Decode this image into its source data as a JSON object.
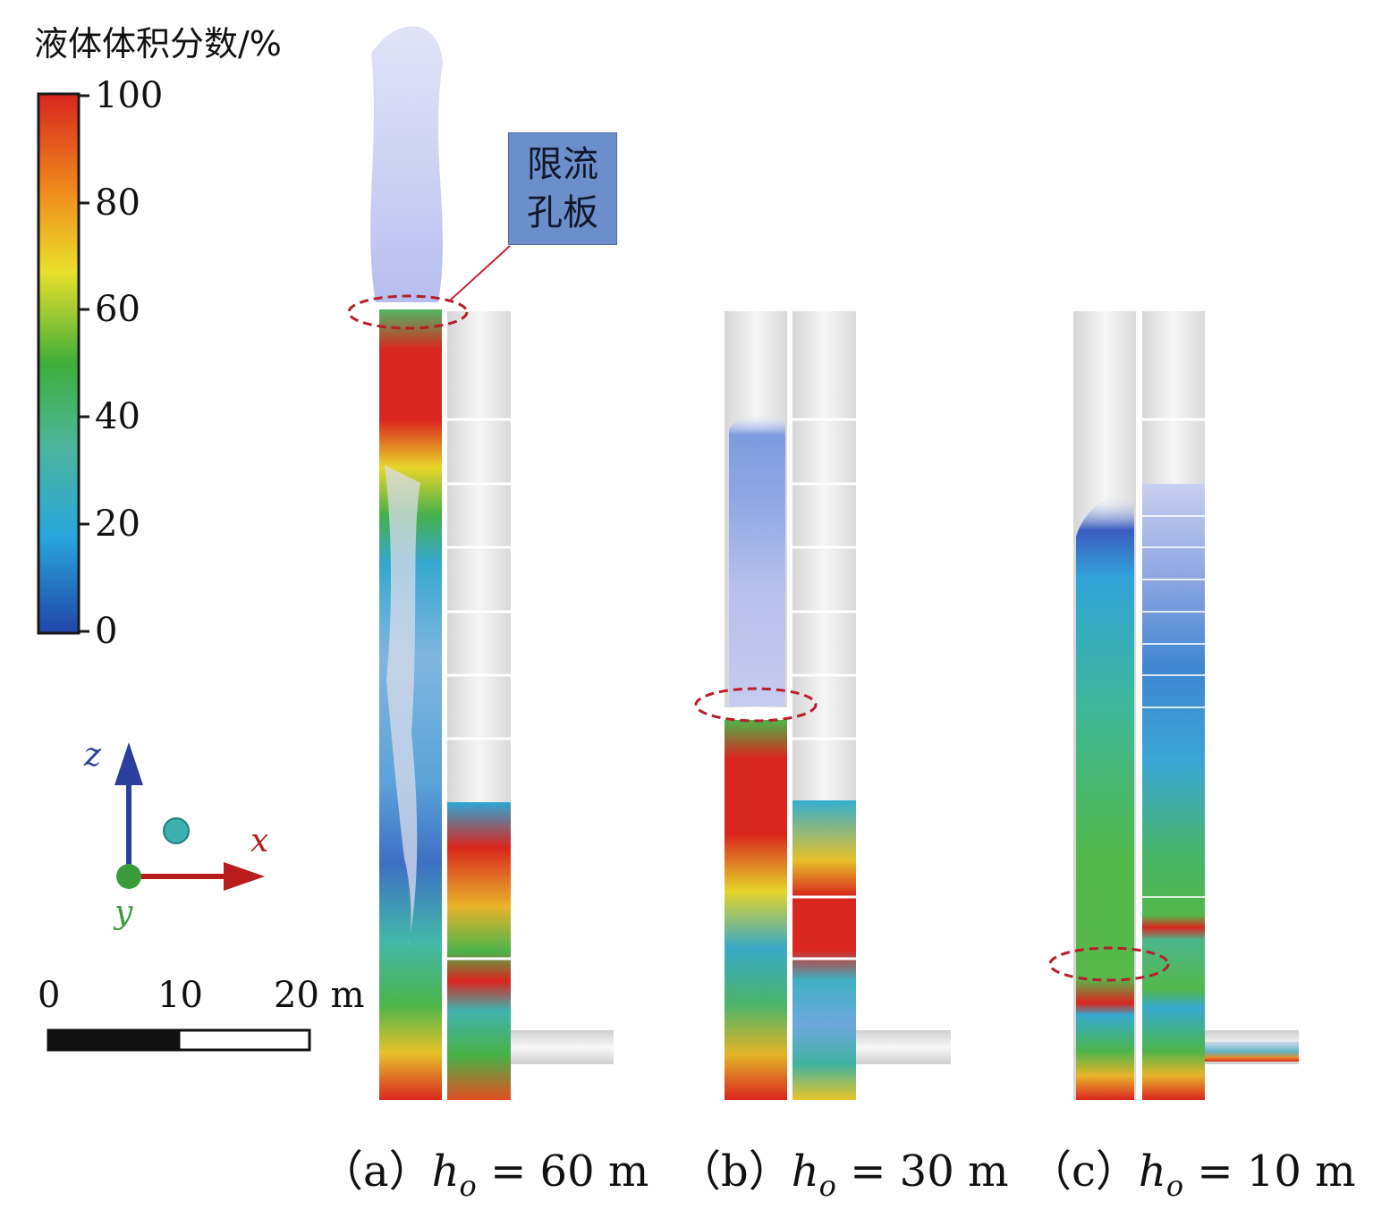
{
  "legend": {
    "title": "液体体积分数/%",
    "ticks": [
      "100",
      "80",
      "60",
      "40",
      "20",
      "0"
    ],
    "colors": [
      "#d7261e",
      "#f08a1c",
      "#e9e02a",
      "#3fae3a",
      "#4db59a",
      "#29a6dc",
      "#2045a8"
    ]
  },
  "callout": {
    "line1": "限流",
    "line2": "孔板"
  },
  "axes": {
    "z": "z",
    "x": "x",
    "y": "y"
  },
  "scalebar": {
    "labels": [
      "0",
      "10",
      "20 m"
    ]
  },
  "panels": [
    {
      "prefix": "（a）",
      "var": "h",
      "sub": "o",
      "value": "= 60 m"
    },
    {
      "prefix": "（b）",
      "var": "h",
      "sub": "o",
      "value": "= 30 m"
    },
    {
      "prefix": "（c）",
      "var": "h",
      "sub": "o",
      "value": "= 10 m"
    }
  ]
}
